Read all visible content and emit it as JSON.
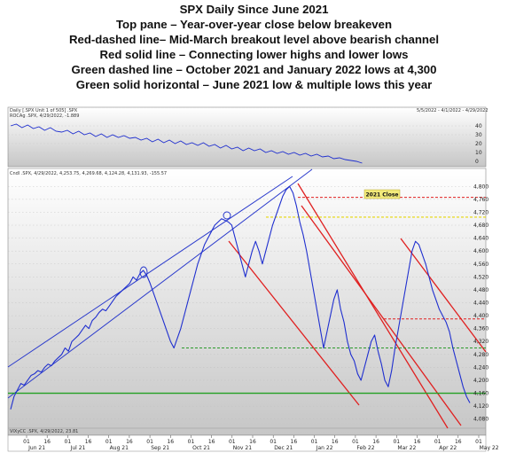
{
  "caption": {
    "title": "SPX Daily Since June 2021",
    "lines": [
      "Top pane – Year-over-year close below breakeven",
      "Red-dashed line– Mid-March breakout level above bearish channel",
      "Red solid line – Connecting lower highs and lower lows",
      "Green dashed line – October 2021 and January 2022 lows at 4,300",
      "Green solid horizontal  – June 2021 low & multiple lows this year"
    ]
  },
  "panels": {
    "header_left": "Daily [.SPX Unit 1 of 505] .SPX",
    "header_right": "5/5/2022 - 4/1/2022 - 4/29/2022",
    "roc_label": "ROCAg .SPX, 4/29/2022, -1.889",
    "main_label": "Cndl .SPX, 4/29/2022, 4,253.75, 4,269.68, 4,124.28, 4,131.93, -155.57",
    "bottom_label": "VIXyCC .SPX, 4/29/2022, 23.81",
    "annotation": "2021 Close"
  },
  "colors": {
    "price": "#1f2fcf",
    "red": "#e02020",
    "green_dash": "#2a9a2a",
    "green_solid": "#22a022",
    "yellow": "#e6d80a",
    "channel": "#2a3acc",
    "annotation_bg": "#f2ea7a"
  },
  "chart_data": [
    {
      "type": "line",
      "name": "top-pane-roc",
      "x_ticks": [
        "01",
        "16",
        "01",
        "16",
        "01",
        "16",
        "01",
        "16",
        "01",
        "16",
        "01",
        "16",
        "01",
        "16",
        "01",
        "16",
        "01",
        "16",
        "01",
        "16",
        "01",
        "16",
        "01"
      ],
      "y_ticks": [
        "40",
        "30",
        "20",
        "10",
        "0"
      ],
      "ylim": [
        -4,
        48
      ],
      "series": [
        {
          "values": [
            [
              0,
              40
            ],
            [
              5,
              42
            ],
            [
              10,
              38
            ],
            [
              15,
              41
            ],
            [
              20,
              37
            ],
            [
              25,
              39
            ],
            [
              30,
              35
            ],
            [
              35,
              38
            ],
            [
              40,
              34
            ],
            [
              45,
              33
            ],
            [
              50,
              35
            ],
            [
              55,
              31
            ],
            [
              60,
              34
            ],
            [
              65,
              30
            ],
            [
              70,
              32
            ],
            [
              75,
              28
            ],
            [
              80,
              31
            ],
            [
              85,
              27
            ],
            [
              90,
              30
            ],
            [
              95,
              27
            ],
            [
              100,
              29
            ],
            [
              105,
              26
            ],
            [
              110,
              27
            ],
            [
              115,
              24
            ],
            [
              120,
              26
            ],
            [
              125,
              22
            ],
            [
              130,
              25
            ],
            [
              135,
              21
            ],
            [
              140,
              24
            ],
            [
              145,
              20
            ],
            [
              150,
              23
            ],
            [
              155,
              19
            ],
            [
              160,
              21
            ],
            [
              165,
              18
            ],
            [
              170,
              21
            ],
            [
              175,
              17
            ],
            [
              180,
              19
            ],
            [
              185,
              15
            ],
            [
              190,
              18
            ],
            [
              195,
              14
            ],
            [
              200,
              16
            ],
            [
              205,
              12
            ],
            [
              210,
              15
            ],
            [
              215,
              12
            ],
            [
              220,
              14
            ],
            [
              225,
              10
            ],
            [
              230,
              12
            ],
            [
              235,
              9
            ],
            [
              240,
              11
            ],
            [
              245,
              8
            ],
            [
              250,
              10
            ],
            [
              255,
              7
            ],
            [
              260,
              9
            ],
            [
              265,
              6
            ],
            [
              270,
              8
            ],
            [
              275,
              5
            ],
            [
              280,
              6
            ],
            [
              285,
              3
            ],
            [
              290,
              4
            ],
            [
              295,
              2
            ],
            [
              300,
              1
            ],
            [
              305,
              0
            ],
            [
              310,
              -2
            ]
          ]
        }
      ]
    },
    {
      "type": "line",
      "name": "spx-daily",
      "x_ticks": [
        "01",
        "16",
        "01",
        "16",
        "01",
        "16",
        "01",
        "16",
        "01",
        "16",
        "01",
        "16",
        "01",
        "16",
        "01",
        "16",
        "01",
        "16",
        "01",
        "16",
        "01",
        "16",
        "01"
      ],
      "x_months": [
        "Jun 21",
        "Jul 21",
        "Aug 21",
        "Sep 21",
        "Oct 21",
        "Nov 21",
        "Dec 21",
        "Jan 22",
        "Feb 22",
        "Mar 22",
        "Apr 22",
        "May 22"
      ],
      "y_ticks": [
        "4,800",
        "4,760",
        "4,720",
        "4,680",
        "4,640",
        "4,600",
        "4,560",
        "4,520",
        "4,480",
        "4,440",
        "4,400",
        "4,360",
        "4,320",
        "4,280",
        "4,240",
        "4,200",
        "4,160",
        "4,120",
        "4,080"
      ],
      "ylim": [
        4060,
        4820
      ],
      "series": [
        {
          "name": "SPX",
          "values": [
            [
              0,
              4110
            ],
            [
              3,
              4150
            ],
            [
              6,
              4170
            ],
            [
              9,
              4190
            ],
            [
              12,
              4185
            ],
            [
              15,
              4200
            ],
            [
              18,
              4215
            ],
            [
              21,
              4220
            ],
            [
              24,
              4230
            ],
            [
              27,
              4225
            ],
            [
              30,
              4240
            ],
            [
              33,
              4250
            ],
            [
              36,
              4245
            ],
            [
              39,
              4260
            ],
            [
              42,
              4270
            ],
            [
              45,
              4280
            ],
            [
              48,
              4300
            ],
            [
              51,
              4290
            ],
            [
              54,
              4320
            ],
            [
              57,
              4330
            ],
            [
              60,
              4340
            ],
            [
              63,
              4355
            ],
            [
              66,
              4370
            ],
            [
              69,
              4360
            ],
            [
              72,
              4385
            ],
            [
              75,
              4395
            ],
            [
              78,
              4410
            ],
            [
              81,
              4420
            ],
            [
              84,
              4415
            ],
            [
              87,
              4430
            ],
            [
              90,
              4445
            ],
            [
              93,
              4460
            ],
            [
              96,
              4470
            ],
            [
              99,
              4480
            ],
            [
              102,
              4490
            ],
            [
              105,
              4500
            ],
            [
              108,
              4520
            ],
            [
              111,
              4510
            ],
            [
              114,
              4530
            ],
            [
              117,
              4540
            ],
            [
              120,
              4525
            ],
            [
              123,
              4500
            ],
            [
              126,
              4470
            ],
            [
              129,
              4440
            ],
            [
              132,
              4410
            ],
            [
              135,
              4380
            ],
            [
              138,
              4350
            ],
            [
              141,
              4320
            ],
            [
              144,
              4300
            ],
            [
              147,
              4330
            ],
            [
              150,
              4360
            ],
            [
              153,
              4400
            ],
            [
              156,
              4440
            ],
            [
              159,
              4480
            ],
            [
              162,
              4520
            ],
            [
              165,
              4560
            ],
            [
              168,
              4590
            ],
            [
              171,
              4620
            ],
            [
              174,
              4640
            ],
            [
              177,
              4660
            ],
            [
              180,
              4680
            ],
            [
              183,
              4690
            ],
            [
              186,
              4700
            ],
            [
              189,
              4695
            ],
            [
              192,
              4690
            ],
            [
              195,
              4680
            ],
            [
              198,
              4640
            ],
            [
              201,
              4600
            ],
            [
              204,
              4560
            ],
            [
              207,
              4520
            ],
            [
              210,
              4560
            ],
            [
              213,
              4600
            ],
            [
              216,
              4630
            ],
            [
              219,
              4600
            ],
            [
              222,
              4560
            ],
            [
              225,
              4600
            ],
            [
              228,
              4640
            ],
            [
              231,
              4680
            ],
            [
              234,
              4710
            ],
            [
              237,
              4740
            ],
            [
              240,
              4770
            ],
            [
              243,
              4790
            ],
            [
              246,
              4800
            ],
            [
              249,
              4780
            ],
            [
              252,
              4740
            ],
            [
              255,
              4690
            ],
            [
              258,
              4650
            ],
            [
              261,
              4600
            ],
            [
              264,
              4540
            ],
            [
              267,
              4480
            ],
            [
              270,
              4420
            ],
            [
              273,
              4360
            ],
            [
              276,
              4300
            ],
            [
              279,
              4350
            ],
            [
              282,
              4400
            ],
            [
              285,
              4450
            ],
            [
              288,
              4480
            ],
            [
              291,
              4420
            ],
            [
              294,
              4380
            ],
            [
              297,
              4320
            ],
            [
              300,
              4280
            ],
            [
              303,
              4260
            ],
            [
              306,
              4220
            ],
            [
              309,
              4200
            ],
            [
              312,
              4240
            ],
            [
              315,
              4280
            ],
            [
              318,
              4320
            ],
            [
              321,
              4340
            ],
            [
              324,
              4290
            ],
            [
              327,
              4250
            ],
            [
              330,
              4200
            ],
            [
              333,
              4180
            ],
            [
              336,
              4230
            ],
            [
              339,
              4300
            ],
            [
              342,
              4360
            ],
            [
              345,
              4420
            ],
            [
              348,
              4480
            ],
            [
              351,
              4540
            ],
            [
              354,
              4600
            ],
            [
              357,
              4630
            ],
            [
              360,
              4620
            ],
            [
              363,
              4590
            ],
            [
              366,
              4560
            ],
            [
              369,
              4520
            ],
            [
              372,
              4480
            ],
            [
              375,
              4450
            ],
            [
              378,
              4420
            ],
            [
              381,
              4400
            ],
            [
              384,
              4380
            ],
            [
              387,
              4350
            ],
            [
              390,
              4300
            ],
            [
              393,
              4260
            ],
            [
              396,
              4220
            ],
            [
              399,
              4180
            ],
            [
              402,
              4150
            ],
            [
              405,
              4130
            ]
          ]
        }
      ],
      "levels": [
        {
          "name": "2021 Close",
          "value": 4766,
          "style": "red-dashed"
        },
        {
          "name": "Mid-March breakout level",
          "value": 4390,
          "style": "red-dashed"
        },
        {
          "name": "Yellow dashed level",
          "value": 4705,
          "style": "yellow-dashed"
        },
        {
          "name": "October 2021 and January 2022 lows",
          "value": 4300,
          "style": "green-dashed"
        },
        {
          "name": "June 2021 low & multiple lows this year",
          "value": 4160,
          "style": "green-solid"
        }
      ]
    }
  ]
}
